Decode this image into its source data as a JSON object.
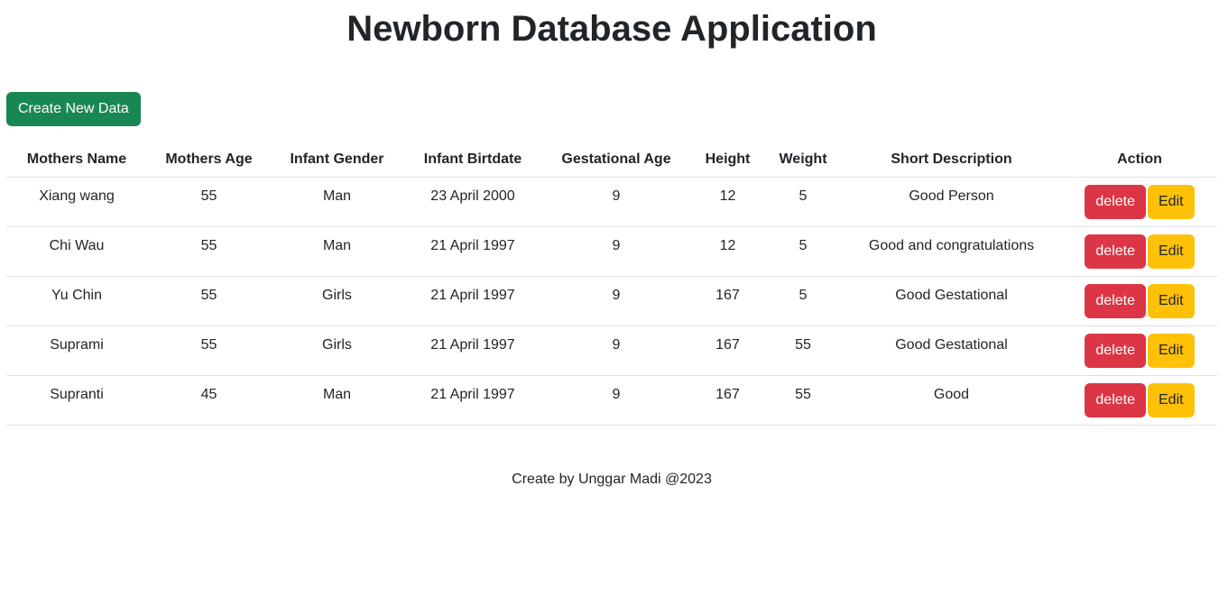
{
  "header": {
    "title": "Newborn Database Application"
  },
  "toolbar": {
    "create_label": "Create New Data"
  },
  "table": {
    "columns": [
      "Mothers Name",
      "Mothers Age",
      "Infant Gender",
      "Infant Birtdate",
      "Gestational Age",
      "Height",
      "Weight",
      "Short Description",
      "Action"
    ],
    "rows": [
      {
        "mothers_name": "Xiang wang",
        "mothers_age": "55",
        "infant_gender": "Man",
        "infant_birthdate": "23 April 2000",
        "gestational_age": "9",
        "height": "12",
        "weight": "5",
        "short_description": "Good Person"
      },
      {
        "mothers_name": "Chi Wau",
        "mothers_age": "55",
        "infant_gender": "Man",
        "infant_birthdate": "21 April 1997",
        "gestational_age": "9",
        "height": "12",
        "weight": "5",
        "short_description": "Good and congratulations"
      },
      {
        "mothers_name": "Yu Chin",
        "mothers_age": "55",
        "infant_gender": "Girls",
        "infant_birthdate": "21 April 1997",
        "gestational_age": "9",
        "height": "167",
        "weight": "5",
        "short_description": "Good Gestational"
      },
      {
        "mothers_name": "Suprami",
        "mothers_age": "55",
        "infant_gender": "Girls",
        "infant_birthdate": "21 April 1997",
        "gestational_age": "9",
        "height": "167",
        "weight": "55",
        "short_description": "Good Gestational"
      },
      {
        "mothers_name": "Supranti",
        "mothers_age": "45",
        "infant_gender": "Man",
        "infant_birthdate": "21 April 1997",
        "gestational_age": "9",
        "height": "167",
        "weight": "55",
        "short_description": "Good"
      }
    ],
    "delete_label": "delete",
    "edit_label": "Edit"
  },
  "footer": {
    "text": "Create by Unggar Madi @2023"
  },
  "colors": {
    "create_button": "#198754",
    "delete_button": "#dc3545",
    "edit_button": "#ffc107",
    "divider": "#dee2e6"
  }
}
